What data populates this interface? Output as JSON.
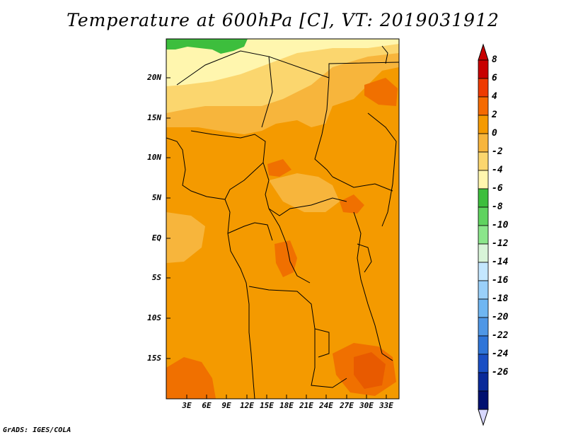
{
  "title": "Temperature at 600hPa [C], VT: 2019031912",
  "credit": "GrADS: IGES/COLA",
  "map": {
    "lat_labels": [
      "20N",
      "15N",
      "10N",
      "5N",
      "EQ",
      "5S",
      "10S",
      "15S"
    ],
    "lon_labels": [
      "3E",
      "6E",
      "9E",
      "12E",
      "15E",
      "18E",
      "21E",
      "24E",
      "27E",
      "30E",
      "33E"
    ]
  },
  "colorbar": {
    "labels": [
      "8",
      "6",
      "4",
      "2",
      "0",
      "-2",
      "-4",
      "-6",
      "-8",
      "-10",
      "-12",
      "-14",
      "-16",
      "-18",
      "-20",
      "-22",
      "-24",
      "-26"
    ],
    "colors": [
      "#c80000",
      "#ee3a00",
      "#f56a00",
      "#f59a00",
      "#f7b53c",
      "#fbd66e",
      "#fff6ae",
      "#3dbe3d",
      "#5fd35f",
      "#8be68b",
      "#d8f4d8",
      "#c4e7ff",
      "#9ad0fa",
      "#6fb6f2",
      "#4f97e6",
      "#2f75d8",
      "#1a4fc4",
      "#0a2a99",
      "#001070"
    ],
    "under_color": "#d8d8ff"
  },
  "colors": {
    "base_orange": "#f49a00",
    "light_orange": "#f7b53c",
    "pale_yellow": "#fbd66e",
    "cream": "#fff6ae",
    "green": "#3dbe3d",
    "dark_orange": "#f07000",
    "red_orange": "#e85a00"
  }
}
